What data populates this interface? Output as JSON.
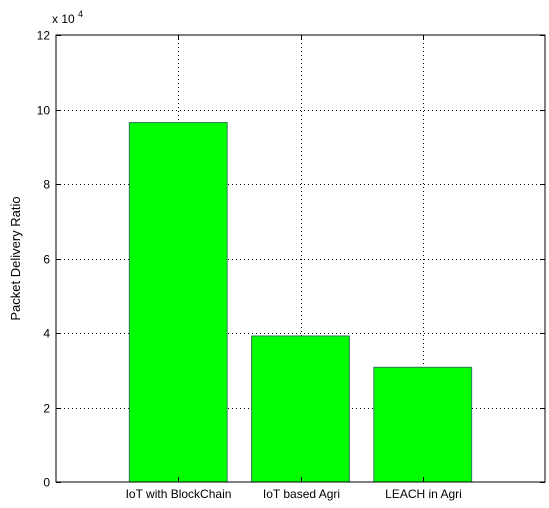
{
  "chart_data": {
    "type": "bar",
    "title": "",
    "xlabel": "",
    "ylabel": "Packet Delivery Ratio",
    "scale_factor_label": "x 10",
    "scale_factor_exponent": "4",
    "categories": [
      "IoT with BlockChain",
      "IoT based Agri",
      "LEACH in Agri"
    ],
    "values": [
      96500,
      39200,
      30800
    ],
    "ylim": [
      0,
      120000
    ],
    "y_ticks": [
      0,
      20000,
      40000,
      60000,
      80000,
      100000,
      120000
    ],
    "y_tick_labels": [
      "0",
      "2",
      "4",
      "6",
      "8",
      "10",
      "12"
    ],
    "xlim": [
      0,
      4
    ],
    "grid": true,
    "bar_color": "#00ff00",
    "bar_edge_color": "#2a7a55"
  }
}
